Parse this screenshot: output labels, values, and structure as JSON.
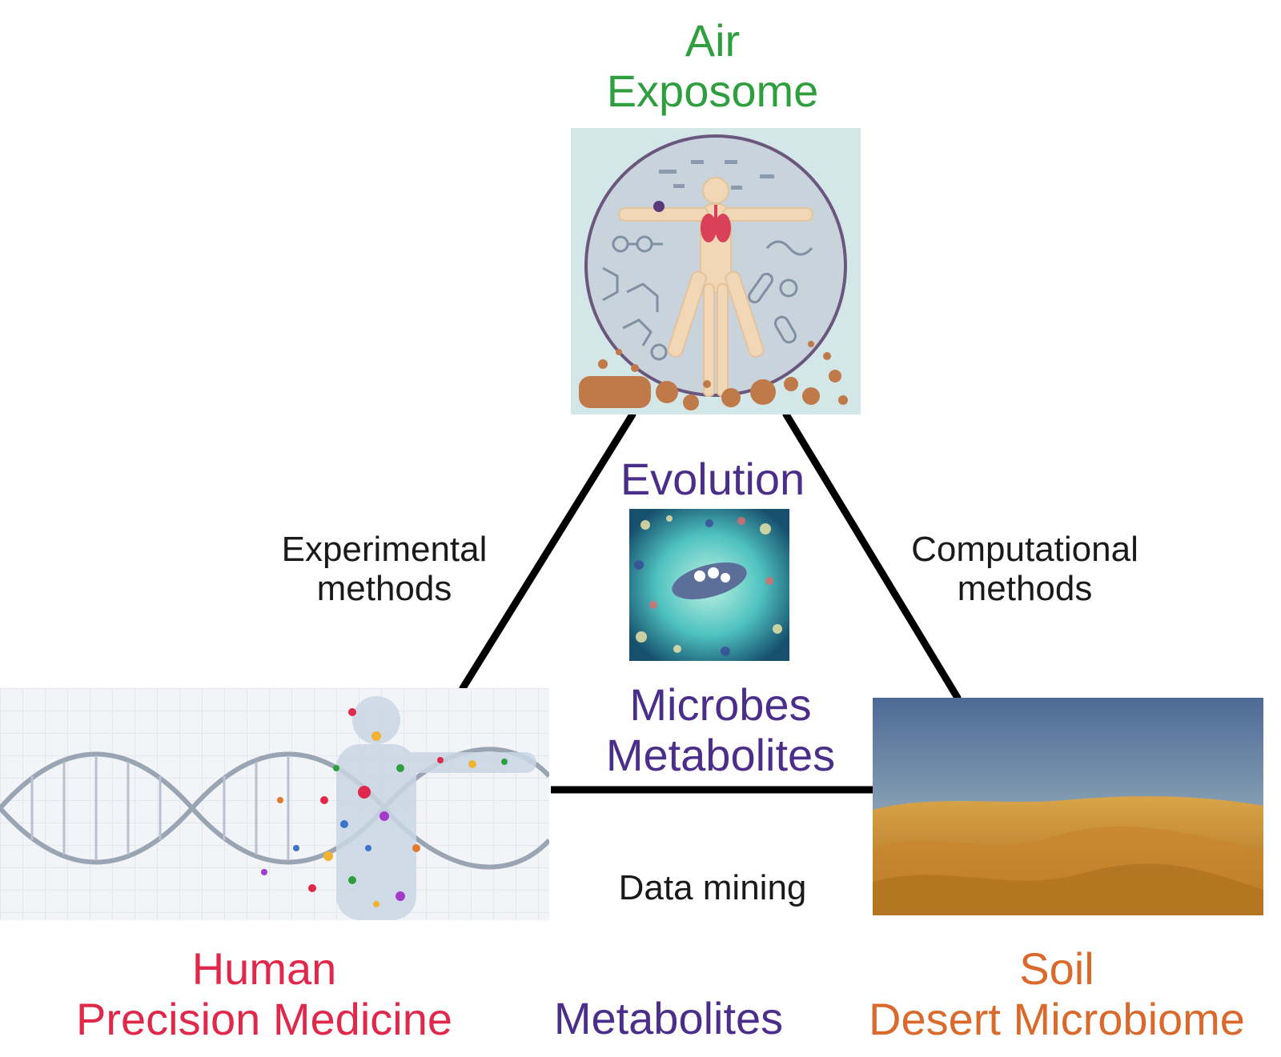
{
  "nodes": {
    "air": {
      "line1": "Air",
      "line2": "Exposome",
      "color": "#2e9e3e"
    },
    "human": {
      "line1": "Human",
      "line2": "Precision Medicine",
      "color": "#e0284a"
    },
    "soil": {
      "line1": "Soil",
      "line2": "Desert Microbiome",
      "color": "#d96a2c"
    }
  },
  "center": {
    "evolution": "Evolution",
    "microbes": "Microbes",
    "metabolites": "Metabolites",
    "color": "#4b2e8a"
  },
  "edges": {
    "left": {
      "line1": "Experimental",
      "line2": "methods"
    },
    "right": {
      "line1": "Computational",
      "line2": "methods"
    },
    "bottom": {
      "text": "Data mining"
    }
  },
  "bottom_center": {
    "text": "Metabolites"
  }
}
